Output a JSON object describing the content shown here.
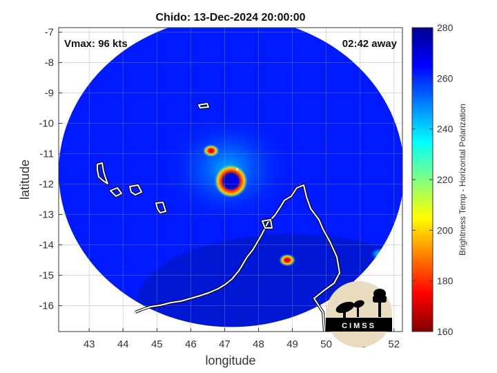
{
  "chart_data": {
    "type": "heatmap",
    "title": "Chido: 13-Dec-2024 20:00:00",
    "xlabel": "longitude",
    "ylabel": "latitude",
    "xlim": [
      42.1,
      52.25
    ],
    "ylim": [
      -16.85,
      -6.85
    ],
    "xticks": [
      43,
      44,
      45,
      46,
      47,
      48,
      49,
      50,
      51,
      52
    ],
    "yticks": [
      -7,
      -8,
      -9,
      -10,
      -11,
      -12,
      -13,
      -14,
      -15,
      -16
    ],
    "annotations": {
      "vmax": "Vmax: 96 kts",
      "time_away": "02:42 away"
    },
    "colorbar": {
      "label": "Brightness Temp - Horizontal Polarization",
      "min": 160,
      "max": 280,
      "ticks": [
        160,
        180,
        200,
        220,
        240,
        260,
        280
      ],
      "colormap": [
        "#800000",
        "#ff0000",
        "#ff8000",
        "#ffff00",
        "#80ff80",
        "#00ffff",
        "#0080ff",
        "#0000ff",
        "#00008f"
      ]
    },
    "swath": {
      "center_lon": 47.2,
      "center_lat": -11.6,
      "radius_deg": 5.1,
      "background_temp": 262
    },
    "storm": {
      "center_lon": 47.25,
      "center_lat": -11.9,
      "eye_temp": 268,
      "eyewall_min_temp": 175
    },
    "convective_features": [
      {
        "lon": 46.6,
        "lat": -10.9,
        "temp": 178
      },
      {
        "lon": 48.85,
        "lat": -14.5,
        "temp": 190
      },
      {
        "lon": 51.6,
        "lat": -14.3,
        "temp": 232
      }
    ],
    "grid": true,
    "logo": "CIMSS"
  }
}
